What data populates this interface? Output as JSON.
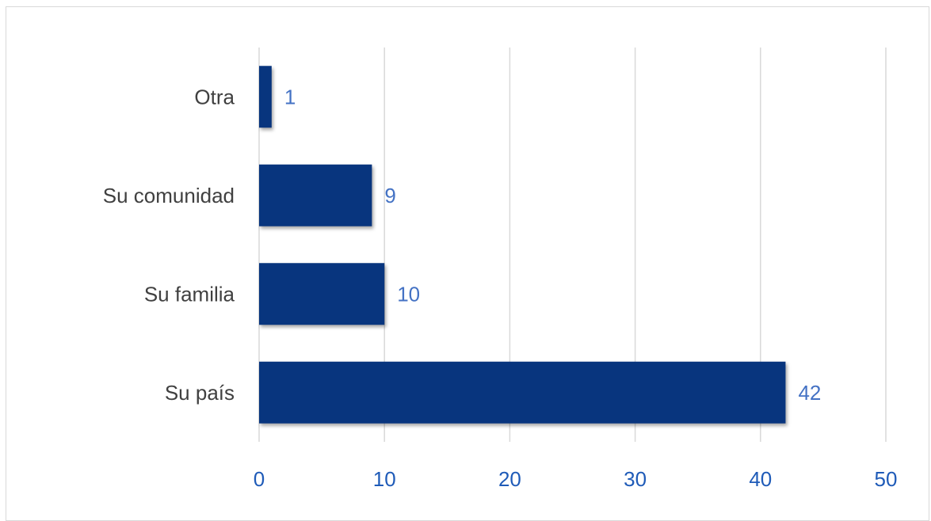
{
  "chart_data": {
    "type": "bar",
    "orientation": "horizontal",
    "categories": [
      "Otra",
      "Su comunidad",
      "Su familia",
      "Su país"
    ],
    "values": [
      1,
      9,
      10,
      42
    ],
    "title": "",
    "xlabel": "",
    "ylabel": "",
    "xlim": [
      0,
      50
    ],
    "x_ticks": [
      0,
      10,
      20,
      30,
      40,
      50
    ],
    "grid": true,
    "legend": "none",
    "colors": {
      "bar": "#08357e",
      "gridline": "#d9d9d9",
      "category_text": "#404040",
      "tick_text": "#1f5bb8",
      "data_label_text": "#4472c4"
    }
  }
}
